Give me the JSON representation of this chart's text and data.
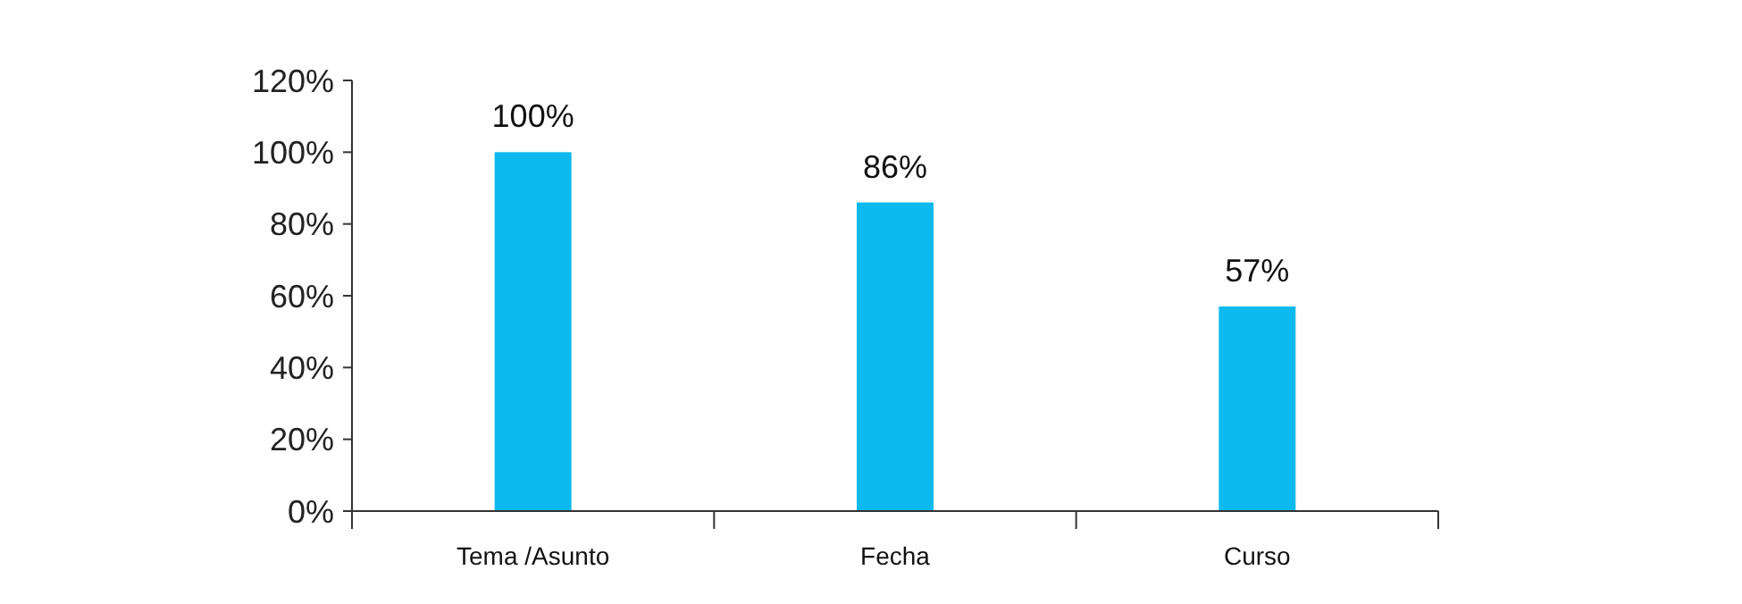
{
  "chart_data": {
    "type": "bar",
    "categories": [
      "Tema /Asunto",
      "Fecha",
      "Curso"
    ],
    "values": [
      100,
      86,
      57
    ],
    "color": "#0db9ee",
    "value_labels": [
      "100%",
      "86%",
      "57%"
    ],
    "ylim": [
      0,
      120
    ],
    "yticks": [
      {
        "value": 0,
        "label": "0%"
      },
      {
        "value": 20,
        "label": "20%"
      },
      {
        "value": 40,
        "label": "40%"
      },
      {
        "value": 60,
        "label": "60%"
      },
      {
        "value": 80,
        "label": "80%"
      },
      {
        "value": 100,
        "label": "100%"
      },
      {
        "value": 120,
        "label": "120%"
      }
    ],
    "grid": false
  }
}
